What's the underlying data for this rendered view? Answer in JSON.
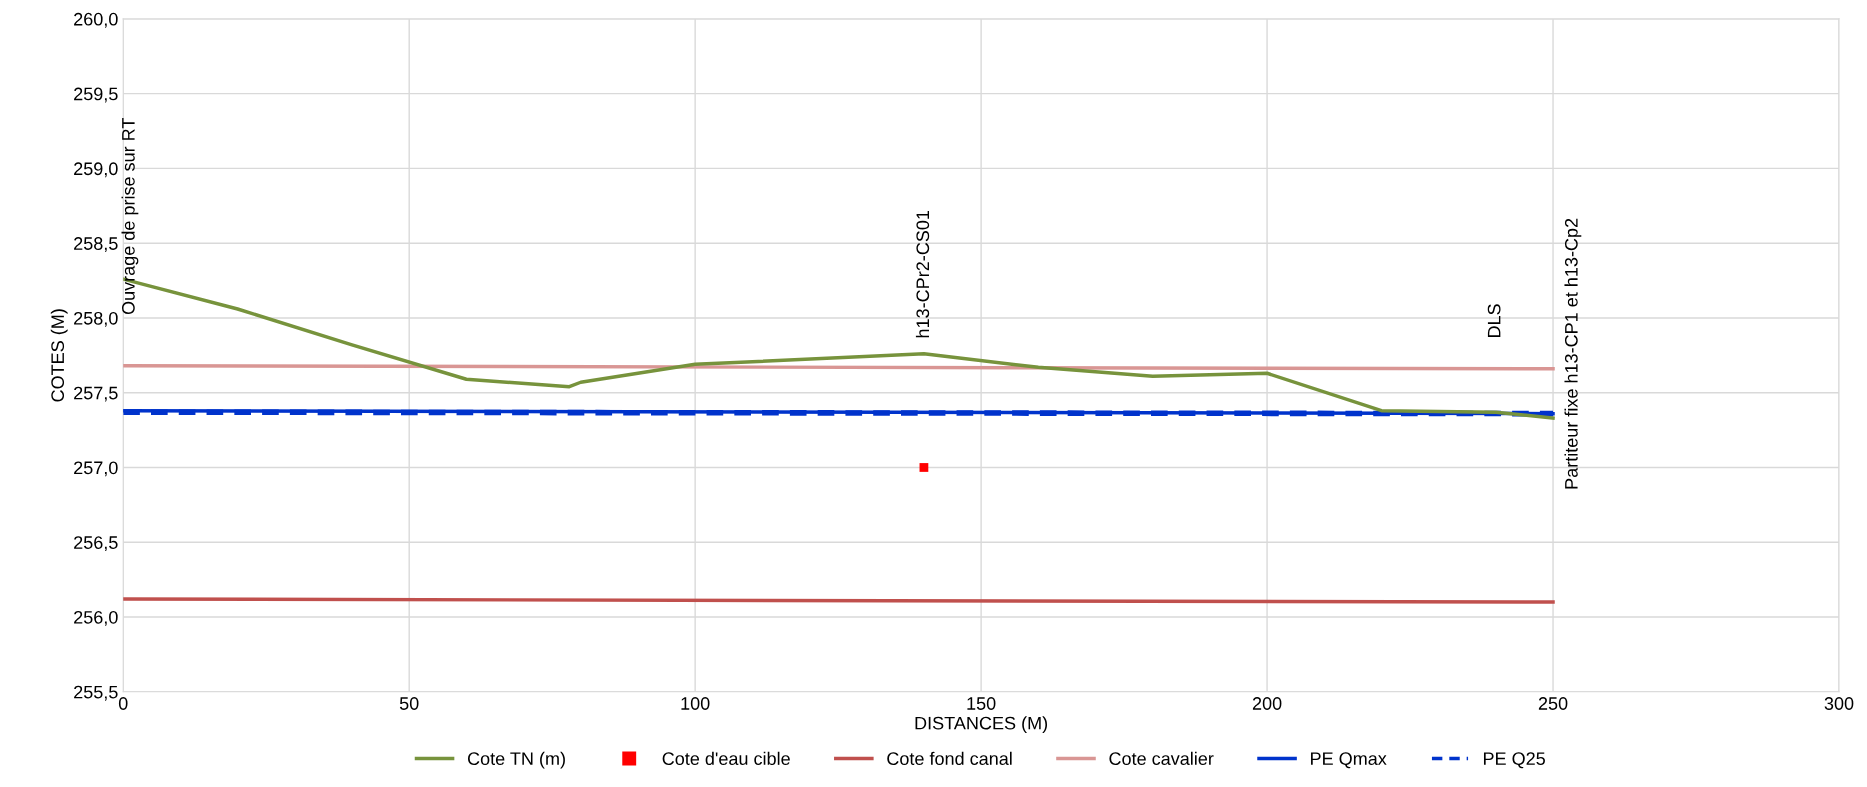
{
  "chart_data": {
    "type": "line",
    "xlabel": "DISTANCES (M)",
    "ylabel": "COTES (M)",
    "xlim": [
      0,
      300
    ],
    "xticks": [
      0,
      50,
      100,
      150,
      200,
      250,
      300
    ],
    "ylim": [
      255.5,
      260
    ],
    "yticks": [
      {
        "value": 255.5,
        "label": "255,5"
      },
      {
        "value": 256,
        "label": "256,0"
      },
      {
        "value": 256.5,
        "label": "256,5"
      },
      {
        "value": 257,
        "label": "257,0"
      },
      {
        "value": 257.5,
        "label": "257,5"
      },
      {
        "value": 258,
        "label": "258,0"
      },
      {
        "value": 258.5,
        "label": "258,5"
      },
      {
        "value": 259,
        "label": "259,0"
      },
      {
        "value": 259.5,
        "label": "259,5"
      },
      {
        "value": 260,
        "label": "260,0"
      }
    ],
    "grid": true,
    "legend": "bottom",
    "marker": "none",
    "series": [
      {
        "name": "Cote TN (m)",
        "color": "#77933c",
        "line_style": "solid",
        "x": [
          0,
          20,
          40,
          60,
          78,
          80,
          100,
          140,
          160,
          180,
          200,
          220,
          240,
          250
        ],
        "values": [
          258.26,
          258.06,
          257.82,
          257.59,
          257.54,
          257.57,
          257.69,
          257.76,
          257.67,
          257.61,
          257.63,
          257.38,
          257.37,
          257.33
        ]
      },
      {
        "name": "Cote d'eau cible",
        "type": "scatter",
        "marker": "square",
        "color": "#ff0000",
        "x": [
          140
        ],
        "values": [
          257.0
        ]
      },
      {
        "name": "Cote fond canal",
        "color": "#c0504d",
        "line_style": "solid",
        "x": [
          0,
          250
        ],
        "values": [
          256.12,
          256.1
        ]
      },
      {
        "name": "Cote cavalier",
        "color": "#d99694",
        "line_style": "solid",
        "x": [
          0,
          250
        ],
        "values": [
          257.68,
          257.66
        ]
      },
      {
        "name": "PE Qmax",
        "color": "#0033cc",
        "line_style": "solid",
        "x": [
          0,
          250
        ],
        "values": [
          257.38,
          257.36
        ]
      },
      {
        "name": "PE Q25",
        "color": "#0033cc",
        "line_style": "dashed",
        "x": [
          0,
          250
        ],
        "values": [
          257.37,
          257.36
        ]
      }
    ],
    "annotations": [
      "Ouvrage de prise sur RT",
      "h13-CPr2-CS01",
      "DLS",
      "Partiteur fixe h13-CP1 et h13-Cp2"
    ]
  }
}
